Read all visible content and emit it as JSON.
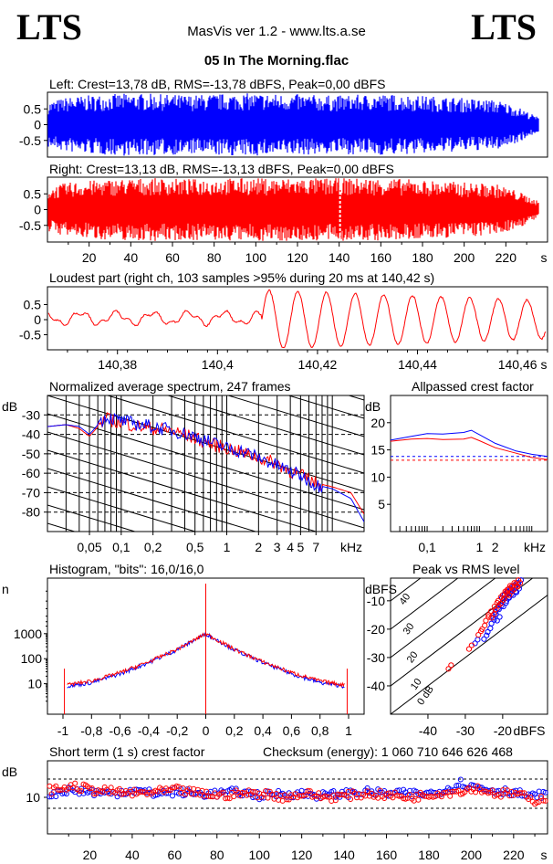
{
  "header": {
    "logo_left": "LTS",
    "logo_right": "LTS",
    "app_title": "MasVis ver 1.2 - www.lts.a.se",
    "file_title": "05 In The Morning.flac"
  },
  "colors": {
    "left": "#0000ff",
    "right": "#ff0000",
    "axis": "#000000"
  },
  "chart_data": [
    {
      "id": "left-waveform",
      "type": "area",
      "title": "Left: Crest=13,78 dB, RMS=-13,78 dBFS, Peak=0,00 dBFS",
      "yticks": [
        "0.5",
        "0",
        "-0.5"
      ],
      "ylim": [
        -1,
        1
      ],
      "duration_s": 236,
      "series": [
        {
          "values": [
            0.72,
            0.88,
            0.93,
            0.97,
            0.99,
            0.98,
            0.96,
            0.94,
            0.97,
            0.99,
            1.0,
            0.98,
            0.97,
            0.95,
            0.92,
            0.95,
            0.97,
            0.96,
            0.93,
            0.9,
            0.86,
            0.82,
            0.78,
            0.55,
            0.22
          ]
        }
      ]
    },
    {
      "id": "right-waveform",
      "type": "area",
      "title": "Right: Crest=13,13 dB, RMS=-13,13 dBFS, Peak=0,00 dBFS",
      "yticks": [
        "0.5",
        "0",
        "-0.5"
      ],
      "xticks": [
        "20",
        "40",
        "60",
        "80",
        "100",
        "120",
        "140",
        "160",
        "180",
        "200",
        "220"
      ],
      "xunit": "s",
      "ylim": [
        -1,
        1
      ],
      "duration_s": 236,
      "loudest_marker_s": 140.42,
      "series": [
        {
          "values": [
            0.7,
            0.86,
            0.92,
            0.96,
            0.99,
            1.0,
            0.99,
            0.97,
            0.99,
            1.0,
            1.0,
            1.0,
            1.0,
            1.0,
            1.0,
            1.0,
            1.0,
            0.99,
            0.95,
            0.92,
            0.88,
            0.85,
            0.8,
            0.58,
            0.25
          ]
        }
      ]
    },
    {
      "id": "loudest-part",
      "type": "line",
      "title": "Loudest part (right ch, 103 samples >95% during 20 ms at 140,42 s)",
      "yticks": [
        "0.5",
        "0",
        "-0.5"
      ],
      "xticks": [
        "140,38",
        "140,4",
        "140,42",
        "140,44",
        "140,46"
      ],
      "xunit": "s",
      "xlim": [
        140.366,
        140.466
      ],
      "ylim": [
        -1,
        1
      ]
    },
    {
      "id": "spectrum",
      "type": "line",
      "title": "Normalized average spectrum, 247 frames",
      "ylabel": "dB",
      "yticks": [
        "-30",
        "-40",
        "-50",
        "-60",
        "-70",
        "-80"
      ],
      "xticks": [
        "0,05",
        "0,1",
        "0,2",
        "0,5",
        "1",
        "2",
        "3",
        "4",
        "5",
        "7"
      ],
      "xunit": "kHz",
      "xlim": [
        0.02,
        20
      ],
      "ylim": [
        -90,
        -20
      ],
      "series": [
        {
          "x": [
            0.02,
            0.03,
            0.04,
            0.05,
            0.07,
            0.1,
            0.15,
            0.2,
            0.3,
            0.5,
            0.7,
            1,
            1.5,
            2,
            3,
            4,
            5,
            7,
            10,
            15,
            20
          ],
          "values": [
            -36,
            -35,
            -37,
            -41,
            -32,
            -34,
            -36,
            -37,
            -38,
            -42,
            -45,
            -47,
            -50,
            -52,
            -55,
            -59,
            -61,
            -65,
            -67,
            -70,
            -81
          ]
        },
        {
          "x": [
            0.02,
            0.03,
            0.04,
            0.05,
            0.07,
            0.1,
            0.15,
            0.2,
            0.3,
            0.5,
            0.7,
            1,
            1.5,
            2,
            3,
            4,
            5,
            7,
            10,
            15,
            20
          ],
          "values": [
            -36,
            -35,
            -36,
            -40,
            -31,
            -33,
            -35,
            -36,
            -38,
            -41,
            -44,
            -47,
            -49,
            -52,
            -56,
            -59,
            -61,
            -66,
            -68,
            -73,
            -85
          ]
        }
      ]
    },
    {
      "id": "allpassed-crest",
      "type": "line",
      "title": "Allpassed crest factor",
      "ylabel": "dB",
      "yticks": [
        "20",
        "15",
        "10",
        "5"
      ],
      "xticks": [
        "0,1",
        "1",
        "2"
      ],
      "xunit": "kHz",
      "xlim": [
        0.02,
        20
      ],
      "ylim": [
        0,
        25
      ],
      "series": [
        {
          "x": [
            0.02,
            0.05,
            0.1,
            0.2,
            0.5,
            0.7,
            1,
            2,
            5,
            10,
            20
          ],
          "values": [
            16.8,
            17.5,
            18.0,
            17.9,
            18.2,
            18.6,
            17.8,
            16.2,
            14.8,
            14.2,
            13.8
          ]
        },
        {
          "x": [
            0.02,
            0.05,
            0.1,
            0.2,
            0.5,
            0.7,
            1,
            2,
            5,
            10,
            20
          ],
          "values": [
            16.6,
            17.0,
            17.1,
            16.9,
            17.0,
            17.3,
            16.7,
            15.4,
            14.4,
            13.6,
            13.2
          ]
        }
      ],
      "reference_lines": [
        13.8,
        13.1
      ]
    },
    {
      "id": "histogram",
      "type": "line",
      "title": "Histogram, \"bits\": 16,0/16,0",
      "ylabel": "n",
      "yticks": [
        "1000",
        "100",
        "10"
      ],
      "xticks": [
        "-1",
        "-0,8",
        "-0,6",
        "-0,4",
        "-0,2",
        "0",
        "0,2",
        "0,4",
        "0,6",
        "0,8",
        "1"
      ],
      "xlim": [
        -1,
        1
      ],
      "ylim": [
        1,
        100000
      ],
      "series": [
        {
          "x": [
            -0.97,
            -0.8,
            -0.6,
            -0.4,
            -0.2,
            0,
            0.2,
            0.4,
            0.6,
            0.8,
            0.97
          ],
          "values": [
            8,
            11,
            25,
            70,
            230,
            1000,
            230,
            70,
            25,
            11,
            8
          ]
        },
        {
          "x": [
            -0.97,
            -0.8,
            -0.6,
            -0.4,
            -0.2,
            0,
            0.2,
            0.4,
            0.6,
            0.8,
            0.97
          ],
          "values": [
            9,
            13,
            28,
            75,
            240,
            1000,
            240,
            75,
            28,
            13,
            9
          ]
        }
      ]
    },
    {
      "id": "peak-vs-rms",
      "type": "scatter",
      "title": "Peak vs RMS level",
      "ylabel": "dBFS",
      "xlabel": "dBFS",
      "yticks": [
        "-10",
        "-20",
        "-30",
        "-40"
      ],
      "xticks": [
        "-40",
        "-30",
        "-20"
      ],
      "diagonal_labels": [
        "40",
        "30",
        "20",
        "10",
        "0 dB"
      ],
      "xlim": [
        -50,
        -8
      ],
      "ylim": [
        -50,
        -2
      ],
      "series": [
        {
          "x": [
            -27.4,
            -25,
            -24,
            -23,
            -22.5,
            -22,
            -21.5,
            -21,
            -20.6,
            -20.2,
            -19.8,
            -19.5,
            -19,
            -18.6,
            -18.3,
            -17.8,
            -17.2,
            -16.8,
            -16.3,
            -15.8
          ],
          "values": [
            -25,
            -23.5,
            -21,
            -18,
            -16,
            -14,
            -17,
            -13,
            -11,
            -9,
            -12,
            -8,
            -10,
            -7,
            -9,
            -6,
            -8,
            -5,
            -7,
            -4
          ]
        },
        {
          "x": [
            -34.5,
            -29,
            -26.5,
            -25.5,
            -24.5,
            -23.8,
            -23,
            -22.2,
            -21.8,
            -21.2,
            -20.5,
            -20,
            -19.5,
            -19,
            -18.7,
            -18.2,
            -17.6,
            -17,
            -16.5,
            -16
          ],
          "values": [
            -34,
            -27,
            -22,
            -20,
            -17,
            -15,
            -16,
            -12,
            -13,
            -10,
            -11,
            -8,
            -9,
            -7,
            -6,
            -8,
            -5,
            -6,
            -4,
            -5
          ]
        }
      ]
    },
    {
      "id": "short-term-crest",
      "type": "scatter",
      "title": "Short term (1 s) crest factor",
      "annotation": "Checksum (energy):  1 060 710 646 626 468",
      "ylabel": "dB",
      "yticks": [
        "10"
      ],
      "xticks": [
        "20",
        "40",
        "60",
        "80",
        "100",
        "120",
        "140",
        "160",
        "180",
        "200",
        "220"
      ],
      "xunit": "s",
      "xlim": [
        0,
        236
      ],
      "ylim": [
        0,
        20
      ],
      "reference_lines": [
        15,
        7
      ],
      "series": [
        {
          "x": [
            2,
            10,
            20,
            30,
            40,
            50,
            60,
            70,
            80,
            90,
            100,
            110,
            120,
            130,
            140,
            150,
            160,
            170,
            180,
            190,
            195,
            200,
            210,
            220,
            228,
            234
          ],
          "values": [
            11,
            12,
            11.5,
            11,
            12,
            11,
            11.5,
            11,
            11,
            11.5,
            10.5,
            11,
            11,
            10.5,
            11,
            11.5,
            11,
            11,
            11,
            12.5,
            14,
            13,
            12,
            11.5,
            10,
            11
          ]
        },
        {
          "x": [
            3,
            12,
            22,
            32,
            42,
            52,
            62,
            72,
            82,
            92,
            102,
            112,
            122,
            132,
            142,
            152,
            162,
            172,
            182,
            192,
            197,
            202,
            212,
            222,
            229,
            235
          ],
          "values": [
            12,
            13,
            12,
            11.5,
            11,
            11.5,
            12,
            11,
            10.5,
            11,
            11,
            10,
            11,
            10,
            10.5,
            11,
            10.5,
            10,
            11,
            11.5,
            12,
            12.5,
            11,
            11,
            9,
            10
          ]
        }
      ]
    }
  ]
}
